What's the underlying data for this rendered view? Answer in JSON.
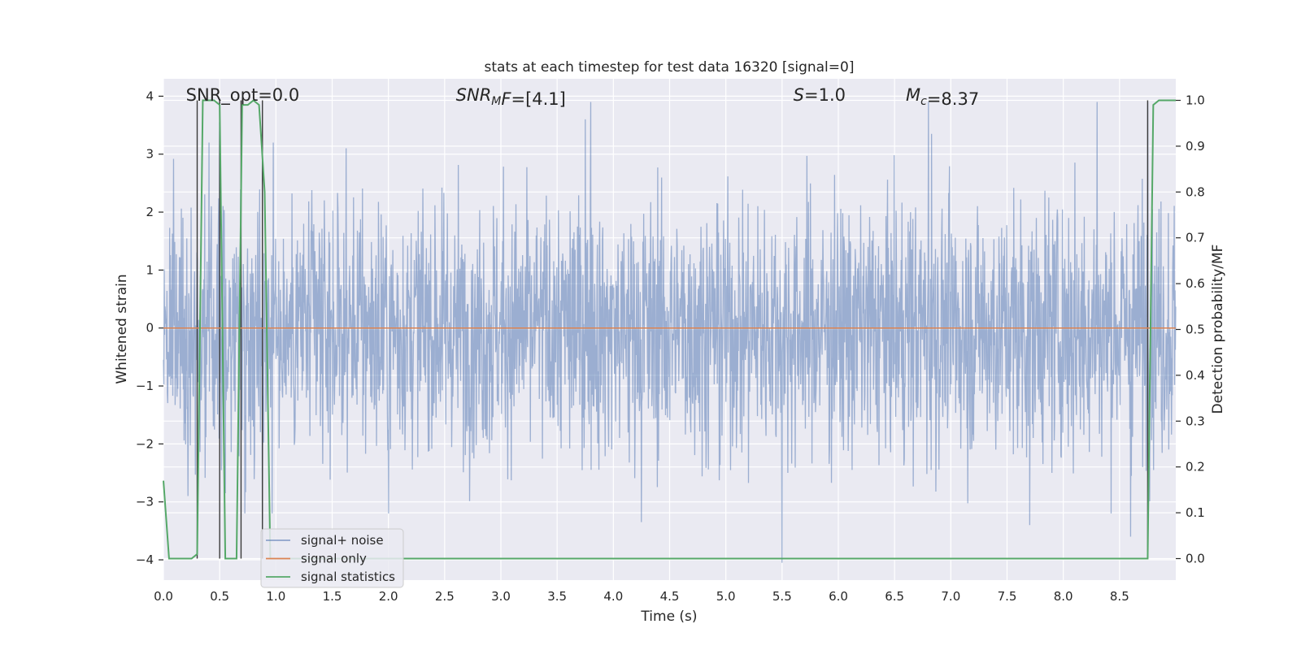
{
  "chart_data": {
    "type": "line",
    "title": "stats at each timestep for test data 16320 [signal=0]",
    "xlabel": "Time (s)",
    "ylabel": "Whitened strain",
    "y2label": "Detection probability/MF",
    "xlim": [
      0.0,
      9.0
    ],
    "ylim": [
      -4.35,
      4.3
    ],
    "y2lim": [
      -0.047,
      1.047
    ],
    "x_ticks": [
      "0.0",
      "0.5",
      "1.0",
      "1.5",
      "2.0",
      "2.5",
      "3.0",
      "3.5",
      "4.0",
      "4.5",
      "5.0",
      "5.5",
      "6.0",
      "6.5",
      "7.0",
      "7.5",
      "8.0",
      "8.5"
    ],
    "y_ticks": [
      "4",
      "3",
      "2",
      "1",
      "0",
      "−1",
      "−2",
      "−3",
      "−4"
    ],
    "y2_ticks": [
      "1.0",
      "0.9",
      "0.8",
      "0.7",
      "0.6",
      "0.5",
      "0.4",
      "0.3",
      "0.2",
      "0.1",
      "0.0"
    ],
    "grid": true,
    "legend_position": "lower-left",
    "annotations": [
      {
        "parts": [
          {
            "t": "SNR_opt=0.0",
            "italic": false
          }
        ],
        "x": 0.2
      },
      {
        "parts": [
          {
            "t": "SNR",
            "italic": true
          },
          {
            "t": "M",
            "italic": true,
            "sub": true
          },
          {
            "t": "F",
            "italic": true
          },
          {
            "t": "=[4.1]",
            "italic": false
          }
        ],
        "x": 2.6
      },
      {
        "parts": [
          {
            "t": "S",
            "italic": true
          },
          {
            "t": "=1.0",
            "italic": false
          }
        ],
        "x": 5.6
      },
      {
        "parts": [
          {
            "t": "M",
            "italic": true
          },
          {
            "t": "c",
            "italic": true,
            "sub": true
          },
          {
            "t": "=8.37",
            "italic": false
          }
        ],
        "x": 6.6
      }
    ],
    "series": [
      {
        "name": "signal+ noise",
        "color": "#4c72b0",
        "style": "noise",
        "rms": 1.1,
        "extremes": [
          [
            0.5,
            3.55
          ],
          [
            0.55,
            -2.85
          ],
          [
            0.88,
            -3.3
          ],
          [
            2.0,
            -3.2
          ],
          [
            3.8,
            3.9
          ],
          [
            3.75,
            3.6
          ],
          [
            4.25,
            -3.35
          ],
          [
            5.5,
            3.5
          ],
          [
            5.5,
            -4.05
          ],
          [
            6.8,
            3.9
          ],
          [
            6.83,
            3.35
          ],
          [
            7.7,
            -3.4
          ],
          [
            8.3,
            3.9
          ],
          [
            8.6,
            -3.6
          ],
          [
            8.75,
            3.9
          ]
        ]
      },
      {
        "name": "signal only",
        "color": "#dd8452",
        "values_constant": 0.0
      },
      {
        "name": "signal statistics",
        "color": "#55a868",
        "axis": "right",
        "x": [
          0.0,
          0.05,
          0.1,
          0.25,
          0.3,
          0.35,
          0.4,
          0.45,
          0.5,
          0.55,
          0.6,
          0.65,
          0.7,
          0.75,
          0.8,
          0.85,
          0.9,
          0.95,
          1.0,
          8.75,
          8.8,
          8.85,
          8.9,
          9.0
        ],
        "values": [
          0.17,
          0.0,
          0.0,
          0.0,
          0.01,
          1.0,
          1.0,
          1.0,
          0.99,
          0.0,
          0.0,
          0.0,
          0.99,
          0.99,
          1.0,
          0.99,
          0.8,
          0.0,
          0.0,
          0.0,
          0.99,
          1.0,
          1.0,
          1.0
        ]
      }
    ],
    "vertical_lines": [
      0.3,
      0.5,
      0.69,
      0.88,
      8.75
    ]
  }
}
